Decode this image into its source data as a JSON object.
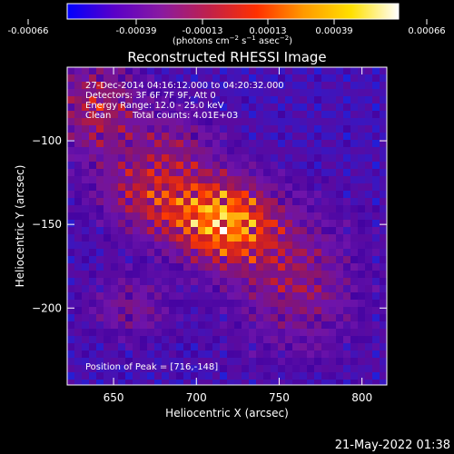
{
  "chart_data": {
    "type": "heatmap",
    "title": "Reconstructed RHESSI Image",
    "xlabel": "Heliocentric X (arcsec)",
    "ylabel": "Heliocentric Y (arcsec)",
    "xlim": [
      622,
      815
    ],
    "ylim": [
      -246,
      -56
    ],
    "x_ticks": [
      650,
      700,
      750,
      800
    ],
    "y_ticks": [
      -100,
      -150,
      -200
    ],
    "colorbar": {
      "ticks": [
        "-0.00066",
        "-0.00039",
        "-0.00013",
        "0.00013",
        "0.00039",
        "0.00066"
      ],
      "label_text": "photons cm",
      "label_sup1": "−2",
      "label_mid1": " s",
      "label_sup2": "−1",
      "label_mid2": " asec",
      "label_sup3": "−2",
      "colors": [
        "#0000ff",
        "#5a00c8",
        "#8a1aa0",
        "#c0204a",
        "#ff3000",
        "#ff9a00",
        "#ffe000",
        "#ffffff"
      ]
    },
    "annotations": {
      "line1": "27-Dec-2014 04:16:12.000 to 04:20:32.000",
      "line2": "Detectors: 3F 6F 7F 9F, Att 0",
      "line3": "Energy Range: 12.0 - 25.0 keV",
      "line4_a": "Clean",
      "line4_b": "Total counts: 4.01E+03",
      "peak": "Position of Peak = [716,-148]"
    },
    "peak": {
      "x": 716,
      "y": -148
    },
    "lobes": [
      {
        "x": 716,
        "y": -148,
        "amp": 1.0,
        "sx": 22,
        "sy": 18
      },
      {
        "x": 672,
        "y": -132,
        "amp": 0.55,
        "sx": 22,
        "sy": 18
      },
      {
        "x": 640,
        "y": -80,
        "amp": 0.55,
        "sx": 20,
        "sy": 22
      },
      {
        "x": 760,
        "y": -185,
        "amp": 0.45,
        "sx": 28,
        "sy": 30
      },
      {
        "x": 660,
        "y": -200,
        "amp": 0.35,
        "sx": 18,
        "sy": 14
      },
      {
        "x": 690,
        "y": -100,
        "amp": 0.3,
        "sx": 18,
        "sy": 14
      }
    ],
    "timestamp": "21-May-2022 01:38"
  }
}
